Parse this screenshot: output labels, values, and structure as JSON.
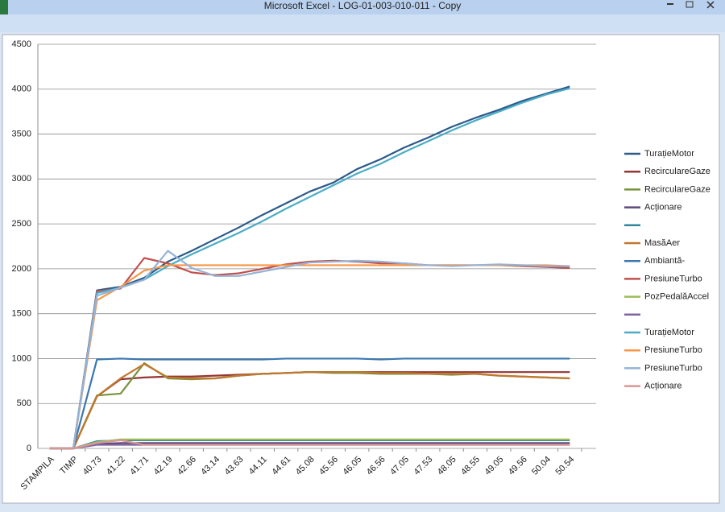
{
  "window": {
    "title": "Microsoft Excel - LOG-01-003-010-011 - Copy"
  },
  "chart_data": {
    "type": "line",
    "categories": [
      "STAMPILA",
      "TIMP",
      "40.73",
      "41.22",
      "41.71",
      "42.19",
      "42.66",
      "43.14",
      "43.63",
      "44.11",
      "44.61",
      "45.08",
      "45.56",
      "46.05",
      "46.56",
      "47.05",
      "47.53",
      "48.05",
      "48.55",
      "49.05",
      "49.56",
      "50.04",
      "50.54"
    ],
    "ylim": [
      0,
      4500
    ],
    "yticks": [
      0,
      500,
      1000,
      1500,
      2000,
      2500,
      3000,
      3500,
      4000,
      4500
    ],
    "grid": true,
    "legend": "right",
    "series": [
      {
        "name": "TurațieMotor",
        "color": "#2c5a8a",
        "values": [
          0,
          0,
          1760,
          1800,
          1900,
          2080,
          2200,
          2330,
          2460,
          2600,
          2730,
          2860,
          2960,
          3110,
          3220,
          3350,
          3460,
          3580,
          3680,
          3770,
          3870,
          3950,
          4030
        ]
      },
      {
        "name": "RecirculareGaze",
        "color": "#943634",
        "values": [
          0,
          0,
          580,
          770,
          790,
          800,
          800,
          810,
          820,
          830,
          840,
          850,
          850,
          850,
          850,
          850,
          850,
          850,
          850,
          850,
          850,
          850,
          850
        ]
      },
      {
        "name": "RecirculareGaze",
        "color": "#77933c",
        "values": [
          0,
          0,
          590,
          610,
          950,
          780,
          770,
          780,
          810,
          830,
          840,
          850,
          840,
          840,
          830,
          830,
          830,
          820,
          830,
          810,
          800,
          790,
          780
        ]
      },
      {
        "name": "Acționare",
        "color": "#5f497a",
        "values": [
          0,
          0,
          50,
          60,
          60,
          60,
          60,
          60,
          60,
          60,
          60,
          60,
          60,
          60,
          60,
          60,
          60,
          60,
          60,
          60,
          60,
          60,
          60
        ]
      },
      {
        "name": null,
        "color": "#31859c",
        "values": [
          0,
          0,
          80,
          90,
          90,
          90,
          90,
          90,
          90,
          90,
          90,
          90,
          90,
          90,
          90,
          90,
          90,
          90,
          90,
          90,
          90,
          90,
          90
        ]
      },
      {
        "name": "MasăAer",
        "color": "#c0782e",
        "values": [
          0,
          0,
          580,
          780,
          940,
          790,
          780,
          780,
          810,
          830,
          840,
          850,
          850,
          850,
          840,
          840,
          830,
          830,
          830,
          810,
          800,
          790,
          780
        ]
      },
      {
        "name": "Ambiantă-",
        "color": "#3a78b0",
        "values": [
          0,
          0,
          990,
          1000,
          990,
          990,
          990,
          990,
          990,
          990,
          1000,
          1000,
          1000,
          1000,
          990,
          1000,
          1000,
          1000,
          1000,
          1000,
          1000,
          1000,
          1000
        ]
      },
      {
        "name": "PresiuneTurbo",
        "color": "#c0504d",
        "values": [
          0,
          0,
          1750,
          1780,
          2120,
          2060,
          1960,
          1930,
          1950,
          2000,
          2050,
          2080,
          2090,
          2080,
          2060,
          2060,
          2040,
          2040,
          2040,
          2040,
          2030,
          2020,
          2010
        ]
      },
      {
        "name": "PozPedalăAccel",
        "color": "#9bbb59",
        "values": [
          0,
          0,
          70,
          100,
          100,
          100,
          100,
          100,
          100,
          100,
          100,
          100,
          100,
          100,
          100,
          100,
          100,
          100,
          100,
          100,
          100,
          100,
          100
        ]
      },
      {
        "name": null,
        "color": "#8064a2",
        "values": [
          0,
          0,
          40,
          40,
          40,
          40,
          40,
          40,
          40,
          40,
          40,
          40,
          40,
          40,
          40,
          40,
          40,
          40,
          40,
          40,
          40,
          40,
          40
        ]
      },
      {
        "name": "TurațieMotor",
        "color": "#4bacc6",
        "values": [
          0,
          0,
          1730,
          1790,
          1880,
          2030,
          2160,
          2280,
          2400,
          2530,
          2670,
          2800,
          2930,
          3060,
          3170,
          3300,
          3420,
          3540,
          3650,
          3750,
          3850,
          3940,
          4010
        ]
      },
      {
        "name": "PresiuneTurbo",
        "color": "#f79646",
        "values": [
          0,
          0,
          1650,
          1800,
          1980,
          2040,
          2040,
          2040,
          2040,
          2040,
          2040,
          2040,
          2040,
          2040,
          2040,
          2040,
          2040,
          2040,
          2040,
          2040,
          2040,
          2040,
          2030
        ]
      },
      {
        "name": "PresiuneTurbo",
        "color": "#95b3d7",
        "values": [
          0,
          0,
          1700,
          1790,
          1880,
          2200,
          2010,
          1920,
          1920,
          1970,
          2020,
          2070,
          2080,
          2090,
          2080,
          2060,
          2040,
          2030,
          2040,
          2050,
          2040,
          2030,
          2030
        ]
      },
      {
        "name": "Acționare",
        "color": "#d99694",
        "values": [
          0,
          0,
          60,
          90,
          40,
          40,
          40,
          40,
          40,
          40,
          40,
          40,
          40,
          40,
          40,
          40,
          40,
          40,
          40,
          40,
          40,
          40,
          40
        ]
      }
    ]
  }
}
